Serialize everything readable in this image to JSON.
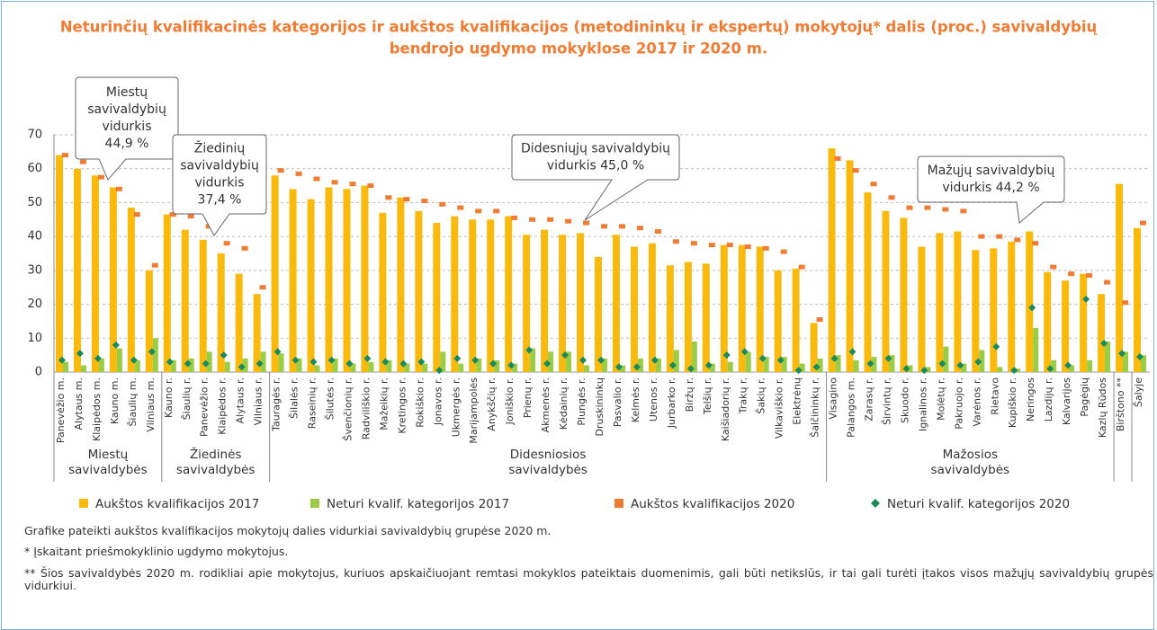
{
  "chart_data": {
    "type": "bar",
    "title": [
      "Neturinčių kvalifikacinės kategorijos ir aukštos kvalifikacijos (metodininkų ir ekspertų) mokytojų* dalis (proc.) savivaldybių",
      "bendrojo ugdymo mokyklose 2017 ir 2020 m."
    ],
    "groups": [
      {
        "name": [
          "Miestų",
          "savivaldybės"
        ],
        "categories": [
          "Panevėžio m.",
          "Alytaus m.",
          "Klaipėdos m.",
          "Kauno m.",
          "Šiaulių m.",
          "Vilniaus m."
        ]
      },
      {
        "name": [
          "Žiedinės",
          "savivaldybės"
        ],
        "categories": [
          "Kauno r.",
          "Šiaulių r.",
          "Panevėžio r.",
          "Klaipėdos r.",
          "Alytaus r.",
          "Vilniaus r."
        ]
      },
      {
        "name": [
          "Didesniosios",
          "savivaldybės"
        ],
        "categories": [
          "Tauragės r.",
          "Šilalės r.",
          "Raseinių r.",
          "Šilutės r.",
          "Švenčionių r.",
          "Radviliškio r.",
          "Mažeikių r.",
          "Kretingos r.",
          "Rokiškio r.",
          "Jonavos r.",
          "Ukmergės r.",
          "Marijampolės",
          "Anykščių r.",
          "Joniškio r.",
          "Prienų r.",
          "Akmenės r.",
          "Kėdainių r.",
          "Plungės r.",
          "Druskininkų",
          "Pasvalio r.",
          "Kelmės r.",
          "Utenos r.",
          "Jurbarko r.",
          "Biržų r.",
          "Telšių r.",
          "Kaišiadorių r.",
          "Trakų r.",
          "Šakių r.",
          "Vilkaviškio r.",
          "Elektrėnų",
          "Šalčininkų r."
        ]
      },
      {
        "name": [
          "Mažosios",
          "savivaldybės"
        ],
        "categories": [
          "Visagino",
          "Palangos m.",
          "Zarasų r.",
          "Širvintų r.",
          "Skuodo r.",
          "Ignalinos r.",
          "Molėtų r.",
          "Pakruojo r.",
          "Varėnos r.",
          "Rietavo",
          "Kupiškio r.",
          "Neringos",
          "Lazdijų r.",
          "Kalvarijos",
          "Pagėgių",
          "Kazlų Rūdos"
        ]
      },
      {
        "categories": [
          "Birštono **"
        ]
      },
      {
        "categories": [
          "Šalyje"
        ]
      }
    ],
    "series": [
      {
        "name": "Aukštos kvalifikacijos 2017",
        "color": "#f9b90d",
        "marker": "bar",
        "values": [
          64,
          60,
          58,
          54.5,
          48.5,
          30,
          46.5,
          42,
          39,
          35,
          29,
          23,
          58,
          54,
          51,
          54.5,
          54,
          55,
          47,
          51.5,
          47.5,
          44,
          46,
          45,
          45,
          46,
          40.5,
          42,
          40.5,
          41,
          34,
          40.5,
          37,
          38,
          31.5,
          32.5,
          32,
          37.5,
          37.5,
          37,
          30,
          30.5,
          14.5,
          66,
          62.5,
          53,
          47.5,
          45.5,
          37,
          41,
          41.5,
          36,
          36.5,
          38.5,
          41.5,
          29.5,
          27,
          29,
          23,
          55.5,
          42.5
        ]
      },
      {
        "name": "Neturi kvalif. kategorijos 2017",
        "color": "#9acd45",
        "marker": "bar",
        "values": [
          3,
          2,
          4,
          7,
          3.5,
          10,
          3.5,
          4,
          6,
          3,
          4,
          6,
          5.5,
          4,
          2,
          4,
          2.5,
          3,
          3.5,
          2.5,
          2.5,
          6,
          2.5,
          4,
          3.5,
          2.5,
          7,
          6,
          6,
          2,
          4,
          2,
          4,
          4,
          6.5,
          9,
          2.5,
          3,
          6,
          4.5,
          4.5,
          2.5,
          4,
          5,
          3.5,
          4.5,
          5,
          2,
          1.5,
          7.5,
          2.5,
          6.5,
          1.5,
          1,
          13,
          3.5,
          2,
          3.5,
          9,
          6,
          5
        ]
      },
      {
        "name": "Aukštos kvalifikacijos 2020",
        "color": "#f07b32",
        "marker": "dash",
        "values": [
          64,
          62,
          57.5,
          54,
          46.5,
          31.5,
          46.5,
          46,
          43,
          38,
          36.5,
          25,
          59.5,
          58.5,
          57,
          56,
          55.5,
          55,
          51.5,
          51,
          50.5,
          49.5,
          48.5,
          47.5,
          47.5,
          45.5,
          45,
          45,
          44.5,
          44,
          43,
          43,
          42.5,
          41.5,
          38.5,
          38,
          37.5,
          37.5,
          37,
          36.5,
          35.5,
          31,
          15.5,
          63,
          59.5,
          55.5,
          51.5,
          48.5,
          48.5,
          48,
          47.5,
          40,
          40,
          39,
          38,
          31,
          29,
          28.5,
          26.5,
          20.5,
          44
        ]
      },
      {
        "name": "Neturi kvalif. kategorijos 2020",
        "color": "#1a8a5a",
        "marker": "diamond",
        "values": [
          3.5,
          5.5,
          4,
          8,
          3.5,
          6,
          3,
          2.5,
          2.5,
          5,
          1.5,
          2.5,
          6,
          3.5,
          3,
          3.5,
          2.5,
          4,
          3,
          2.5,
          3,
          0.5,
          4,
          3.5,
          2.5,
          2,
          6.5,
          2.5,
          5,
          3.5,
          3.5,
          1.5,
          1.5,
          3.5,
          2,
          1,
          2,
          5,
          6,
          4,
          3.5,
          0.5,
          1.5,
          4,
          6,
          2.5,
          4,
          1,
          0.5,
          2.5,
          2,
          3,
          7.5,
          0.5,
          19,
          1,
          2,
          21.5,
          8.5,
          5.5,
          4.5
        ]
      }
    ],
    "ylim": [
      0,
      70
    ],
    "yticks": [
      0,
      10,
      20,
      30,
      40,
      50,
      60,
      70
    ],
    "grid": true,
    "annotations": [
      {
        "lines": [
          "Miestų",
          "savivaldybių",
          "vidurkis",
          "44,9 %"
        ]
      },
      {
        "lines": [
          "Žiedinių",
          "savivaldybių",
          "vidurkis",
          "37,4 %"
        ]
      },
      {
        "lines": [
          "Didesniųjų  savivaldybių",
          "vidurkis 45,0 %"
        ]
      },
      {
        "lines": [
          "Mažųjų savivaldybių",
          "vidurkis 44,2 %"
        ]
      }
    ],
    "notes": [
      "Grafike pateikti aukštos kvalifikacijos mokytojų dalies vidurkiai savivaldybių grupėse 2020 m.",
      "* Įskaitant priešmokyklinio ugdymo mokytojus.",
      "** Šios savivaldybės 2020 m. rodikliai apie mokytojus, kuriuos apskaičiuojant remtasi mokyklos pateiktais duomenimis, gali būti netikslūs, ir tai gali turėti įtakos visos mažųjų savivaldybių grupės vidurkiui."
    ]
  }
}
